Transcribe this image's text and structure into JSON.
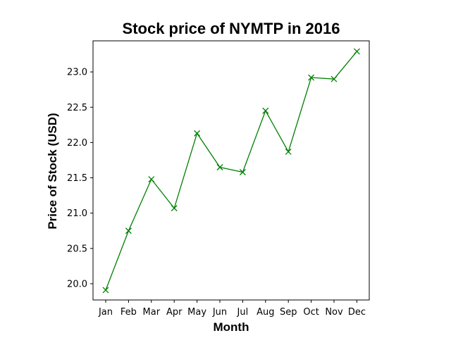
{
  "chart_data": {
    "type": "line",
    "title": "Stock price of NYMTP in 2016",
    "xlabel": "Month",
    "ylabel": "Price of Stock (USD)",
    "categories": [
      "Jan",
      "Feb",
      "Mar",
      "Apr",
      "May",
      "Jun",
      "Jul",
      "Aug",
      "Sep",
      "Oct",
      "Nov",
      "Dec"
    ],
    "series": [
      {
        "values": [
          19.91,
          20.75,
          21.48,
          21.07,
          22.13,
          21.65,
          21.58,
          22.45,
          21.87,
          22.92,
          22.9,
          23.29
        ],
        "color": "#008000",
        "marker": "x"
      }
    ],
    "ylim": [
      19.77,
      23.44
    ],
    "yticks": [
      "20.0",
      "20.5",
      "21.0",
      "21.5",
      "22.0",
      "22.5",
      "23.0"
    ],
    "grid": false,
    "legend": "none"
  }
}
